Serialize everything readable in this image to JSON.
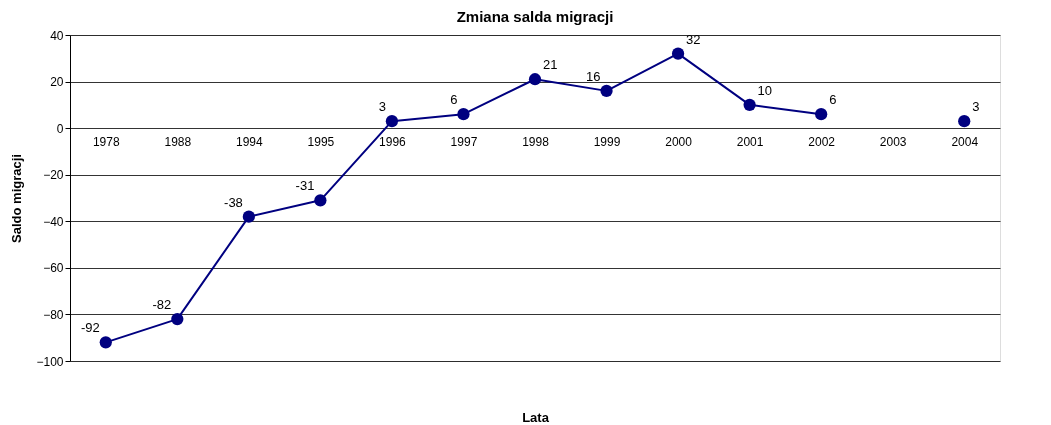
{
  "chart_data": {
    "type": "line",
    "title": "Zmiana salda migracji",
    "xlabel": "Lata",
    "ylabel": "Saldo migracji",
    "categories": [
      "1978",
      "1988",
      "1994",
      "1995",
      "1996",
      "1997",
      "1998",
      "1999",
      "2000",
      "2001",
      "2002",
      "2003",
      "2004"
    ],
    "series": [
      {
        "color": "#000080",
        "values": [
          -92,
          -82,
          -38,
          -31,
          3,
          6,
          21,
          16,
          32,
          10,
          6,
          null,
          3
        ]
      }
    ],
    "ylim": [
      -100,
      40
    ],
    "yticks": [
      -100,
      -80,
      -60,
      -40,
      -20,
      0,
      20,
      40
    ],
    "grid": "y",
    "marker": "circle",
    "line_style": "solid",
    "data_labels": true
  }
}
